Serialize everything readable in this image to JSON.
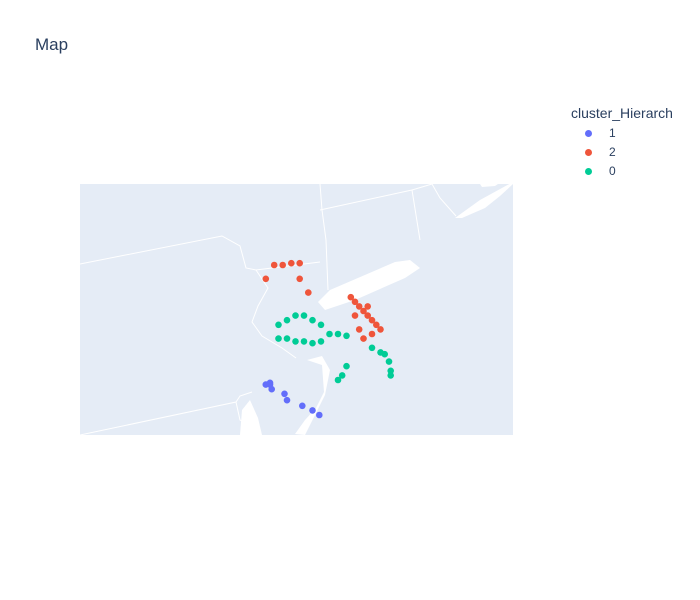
{
  "title": "Map",
  "legend": {
    "title": "cluster_Hierarch",
    "items": [
      {
        "label": "1",
        "color": "#636efa"
      },
      {
        "label": "2",
        "color": "#ef553b"
      },
      {
        "label": "0",
        "color": "#00cc96"
      }
    ]
  },
  "map": {
    "land_color": "#e5ecf6",
    "border_color": "#ffffff"
  },
  "chart_data": {
    "type": "scatter",
    "title": "Map",
    "legend_title": "cluster_Hierarch",
    "legend_placement": "top-right",
    "series": [
      {
        "name": "1",
        "color": "#636efa",
        "x": [
          -75.35,
          -75.3,
          -75.3,
          -75.28,
          -75.13,
          -75.1,
          -74.92,
          -74.8,
          -74.72
        ],
        "y": [
          39.95,
          39.95,
          39.97,
          39.9,
          39.85,
          39.78,
          39.72,
          39.67,
          39.62
        ]
      },
      {
        "name": "2",
        "color": "#ef553b",
        "x": [
          -75.35,
          -75.25,
          -75.15,
          -75.05,
          -74.95,
          -74.95,
          -74.85,
          -74.35,
          -74.3,
          -74.25,
          -74.2,
          -74.15,
          -74.1,
          -74.05,
          -74.0,
          -74.1,
          -74.2,
          -74.3,
          -74.15,
          -74.25
        ],
        "y": [
          41.1,
          41.25,
          41.25,
          41.27,
          41.27,
          41.1,
          40.95,
          40.9,
          40.85,
          40.8,
          40.75,
          40.7,
          40.65,
          40.6,
          40.55,
          40.5,
          40.45,
          40.7,
          40.8,
          40.55
        ]
      },
      {
        "name": "0",
        "color": "#00cc96",
        "x": [
          -75.2,
          -75.1,
          -75.0,
          -74.9,
          -74.8,
          -74.7,
          -75.2,
          -75.1,
          -75.0,
          -74.9,
          -74.8,
          -74.7,
          -74.6,
          -74.5,
          -74.4,
          -74.1,
          -74.0,
          -73.95,
          -73.9,
          -73.88,
          -73.88,
          -74.4,
          -74.45,
          -74.5
        ],
        "y": [
          40.6,
          40.65,
          40.7,
          40.7,
          40.65,
          40.6,
          40.45,
          40.45,
          40.42,
          40.42,
          40.4,
          40.42,
          40.5,
          40.5,
          40.48,
          40.35,
          40.3,
          40.28,
          40.2,
          40.1,
          40.05,
          40.15,
          40.05,
          40.0
        ]
      }
    ]
  }
}
